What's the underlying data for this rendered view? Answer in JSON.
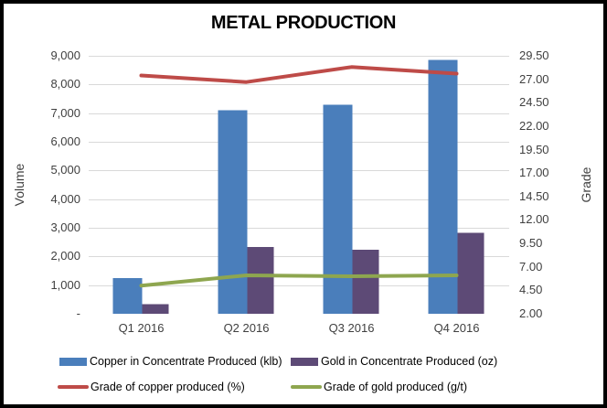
{
  "chart_data": {
    "type": "combo-bar-line",
    "title": "METAL PRODUCTION",
    "categories": [
      "Q1 2016",
      "Q2 2016",
      "Q3 2016",
      "Q4 2016"
    ],
    "series": [
      {
        "key": "copper-bars",
        "name": "Copper in Concentrate Produced (klb)",
        "type": "bar",
        "axis": "left",
        "color": "#4A7EBB",
        "values": [
          1250,
          7100,
          7300,
          8850
        ]
      },
      {
        "key": "gold-bars",
        "name": "Gold in Concentrate Produced (oz)",
        "type": "bar",
        "axis": "left",
        "color": "#5D4A76",
        "values": [
          330,
          2330,
          2230,
          2830
        ]
      },
      {
        "key": "copper-grade-line",
        "name": "Grade of copper produced (%)",
        "type": "line",
        "axis": "right",
        "color": "#BE4B48",
        "values": [
          27.4,
          26.7,
          28.3,
          27.6
        ]
      },
      {
        "key": "gold-grade-line",
        "name": "Grade of gold produced (g/t)",
        "type": "line",
        "axis": "right",
        "color": "#8EA64F",
        "values": [
          5.0,
          6.1,
          6.0,
          6.1
        ]
      }
    ],
    "axes": {
      "left": {
        "label": "Volume",
        "min": 0,
        "max": 9000,
        "tick_labels_bottom_to_top": [
          "-",
          "1,000",
          "2,000",
          "3,000",
          "4,000",
          "5,000",
          "6,000",
          "7,000",
          "8,000",
          "9,000"
        ]
      },
      "right": {
        "label": "Grade",
        "min": 2.0,
        "max": 29.5,
        "tick_labels_bottom_to_top": [
          "2.00",
          "4.50",
          "7.00",
          "9.50",
          "12.00",
          "14.50",
          "17.00",
          "19.50",
          "22.00",
          "24.50",
          "27.00",
          "29.50"
        ]
      }
    },
    "grid": true,
    "legend_position": "bottom",
    "colors": {
      "gridline": "#D9D9D9",
      "axis_line": "#BFBFBF",
      "tick_text": "#404040",
      "title_text": "#000000"
    }
  }
}
